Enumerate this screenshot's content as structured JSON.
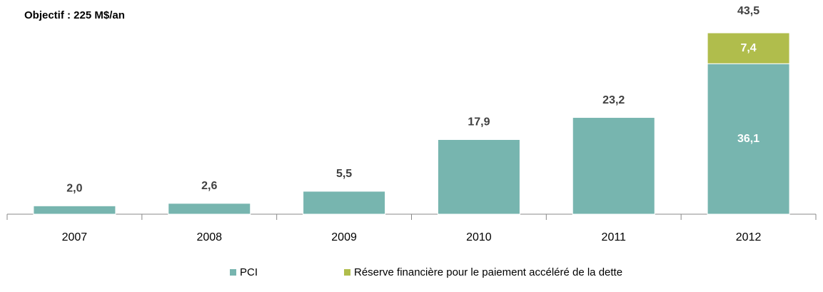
{
  "chart_data": {
    "type": "stacked_bar",
    "title": "Objectif : 225 M$/an",
    "categories": [
      "2007",
      "2008",
      "2009",
      "2010",
      "2011",
      "2012"
    ],
    "series": [
      {
        "name": "PCI",
        "color": "#77b5af",
        "values": [
          2.0,
          2.6,
          5.5,
          17.9,
          23.2,
          36.1
        ],
        "value_labels": [
          "2,0",
          "2,6",
          "5,5",
          "17,9",
          "23,2",
          "36,1"
        ]
      },
      {
        "name": "Réserve financière pour le paiement accéléré de la dette",
        "color": "#b0bd4c",
        "values": [
          null,
          null,
          null,
          null,
          null,
          7.4
        ],
        "value_labels": [
          null,
          null,
          null,
          null,
          null,
          "7,4"
        ]
      }
    ],
    "totals": [
      null,
      null,
      null,
      null,
      null,
      43.5
    ],
    "total_labels": [
      null,
      null,
      null,
      null,
      null,
      "43,5"
    ],
    "legend": "bottom"
  }
}
